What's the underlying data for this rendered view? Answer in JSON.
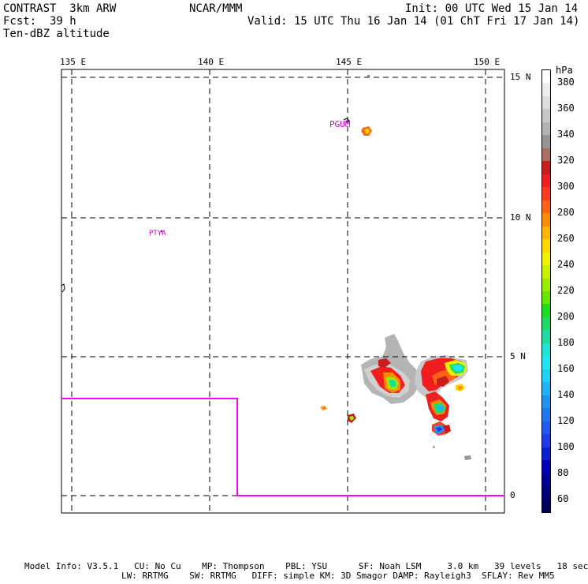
{
  "header": {
    "model": "CONTRAST  3km ARW",
    "fcst_label": "Fcst:",
    "fcst_value": "39 h",
    "field": "Ten-dBZ altitude",
    "center": "NCAR/MMM",
    "init": "Init: 00 UTC Wed 15 Jan 14",
    "valid": "Valid: 15 UTC Thu 16 Jan 14 (01 ChT Fri 17 Jan 14)"
  },
  "map": {
    "lon_labels": [
      "135 E",
      "140 E",
      "145 E",
      "150 E"
    ],
    "lat_labels": [
      "15 N",
      "10 N",
      "5 N",
      "0"
    ],
    "stations": [
      {
        "id": "PGUM",
        "lon": 144.8,
        "lat": 13.5
      },
      {
        "id": "PTYA",
        "lon": 138.1,
        "lat": 9.5
      }
    ]
  },
  "colorbar": {
    "unit": "hPa",
    "levels": [
      {
        "label": "380",
        "color": "#ffffff"
      },
      {
        "label": "",
        "color": "#eeeeee"
      },
      {
        "label": "360",
        "color": "#dcdcdc"
      },
      {
        "label": "",
        "color": "#c8c8c8"
      },
      {
        "label": "340",
        "color": "#b4b4b4"
      },
      {
        "label": "",
        "color": "#969696"
      },
      {
        "label": "320",
        "color": "#aa6e64"
      },
      {
        "label": "",
        "color": "#c81e1e"
      },
      {
        "label": "300",
        "color": "#f01e1e"
      },
      {
        "label": "",
        "color": "#ff3c1e"
      },
      {
        "label": "280",
        "color": "#ff6414"
      },
      {
        "label": "",
        "color": "#ff8c00"
      },
      {
        "label": "260",
        "color": "#ffb400"
      },
      {
        "label": "",
        "color": "#ffd700"
      },
      {
        "label": "240",
        "color": "#f0f000"
      },
      {
        "label": "",
        "color": "#c8f000"
      },
      {
        "label": "220",
        "color": "#96f000"
      },
      {
        "label": "",
        "color": "#64e600"
      },
      {
        "label": "200",
        "color": "#1edc1e"
      },
      {
        "label": "",
        "color": "#1edc64"
      },
      {
        "label": "180",
        "color": "#1edca0"
      },
      {
        "label": "",
        "color": "#1ee6d2"
      },
      {
        "label": "160",
        "color": "#1ee6f0"
      },
      {
        "label": "",
        "color": "#1ed2f5"
      },
      {
        "label": "140",
        "color": "#1eb4f5"
      },
      {
        "label": "",
        "color": "#1e96f0"
      },
      {
        "label": "120",
        "color": "#1e78f0"
      },
      {
        "label": "",
        "color": "#1e5af0"
      },
      {
        "label": "100",
        "color": "#1e3ce6"
      },
      {
        "label": "",
        "color": "#0a1ed2"
      },
      {
        "label": "80",
        "color": "#0000b4"
      },
      {
        "label": "",
        "color": "#000096"
      },
      {
        "label": "60",
        "color": "#000078"
      },
      {
        "label": "",
        "color": "#00005a"
      }
    ]
  },
  "footer": {
    "line1": "Model Info: V3.5.1   CU: No Cu    MP: Thompson    PBL: YSU      SF: Noah LSM     3.0 km   39 levels   18 sec",
    "line2": "LW: RRTMG    SW: RRTMG   DIFF: simple KM: 3D Smagor DAMP: Rayleigh3  SFLAY: Rev MM5"
  },
  "colors": {
    "domain_boundary": "#ff00ff",
    "station_label": "#cc00cc"
  }
}
